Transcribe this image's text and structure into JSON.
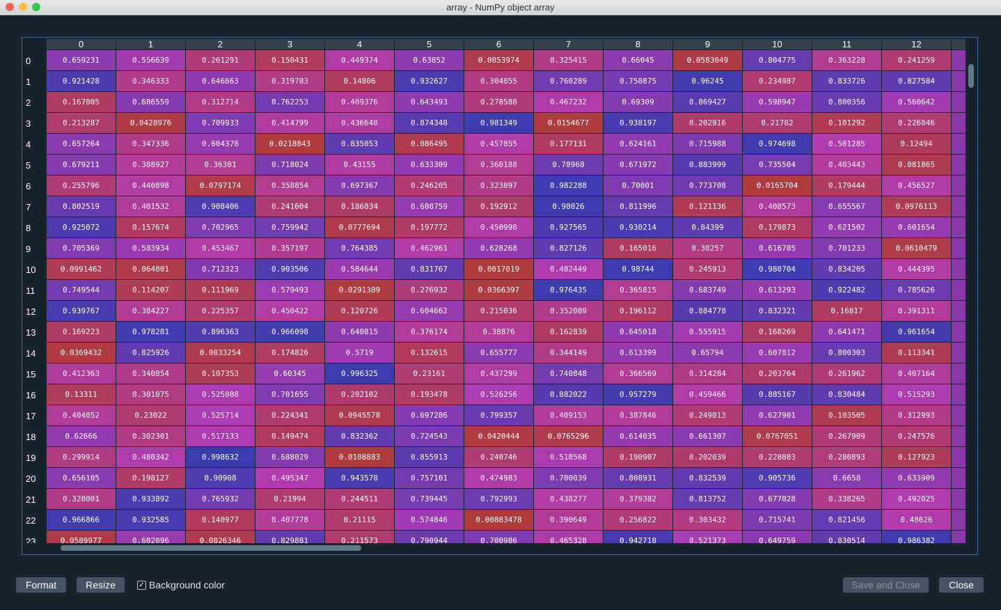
{
  "window": {
    "title": "array - NumPy object array"
  },
  "table": {
    "columns": [
      "0",
      "1",
      "2",
      "3",
      "4",
      "5",
      "6",
      "7",
      "8",
      "9",
      "10",
      "11",
      "12"
    ],
    "row_labels": [
      "0",
      "1",
      "2",
      "3",
      "4",
      "5",
      "6",
      "7",
      "8",
      "9",
      "10",
      "11",
      "12",
      "13",
      "14",
      "15",
      "16",
      "17",
      "18",
      "19",
      "20",
      "21",
      "22",
      "23"
    ],
    "rows": [
      [
        "0.659231",
        "0.556639",
        "0.261291",
        "0.150431",
        "0.449374",
        "0.63852",
        "0.0853974",
        "0.325415",
        "0.66045",
        "0.0583049",
        "0.804775",
        "0.363228",
        "0.241259"
      ],
      [
        "0.921428",
        "0.346333",
        "0.646663",
        "0.319783",
        "0.14806",
        "0.932627",
        "0.304055",
        "0.760289",
        "0.750875",
        "0.96245",
        "0.234987",
        "0.833726",
        "0.827584"
      ],
      [
        "0.167805",
        "0.686559",
        "0.312714",
        "0.762253",
        "0.409376",
        "0.643493",
        "0.278588",
        "0.467232",
        "0.69309",
        "0.869427",
        "0.598947",
        "0.800356",
        "0.560642"
      ],
      [
        "0.213287",
        "0.0428976",
        "0.709933",
        "0.414799",
        "0.436648",
        "0.874348",
        "0.981349",
        "0.0154677",
        "0.938197",
        "0.202916",
        "0.21782",
        "0.101292",
        "0.226046"
      ],
      [
        "0.657264",
        "0.347336",
        "0.604378",
        "0.0218843",
        "0.835053",
        "0.086495",
        "0.457855",
        "0.177131",
        "0.624161",
        "0.715988",
        "0.974698",
        "0.501285",
        "0.12494"
      ],
      [
        "0.679211",
        "0.388927",
        "0.36301",
        "0.718024",
        "0.43155",
        "0.633309",
        "0.360188",
        "0.78968",
        "0.671972",
        "0.883999",
        "0.735504",
        "0.403443",
        "0.081865"
      ],
      [
        "0.255796",
        "0.440898",
        "0.0797174",
        "0.358854",
        "0.697367",
        "0.246205",
        "0.323897",
        "0.982288",
        "0.70001",
        "0.773708",
        "0.0165704",
        "0.179444",
        "0.456527"
      ],
      [
        "0.802519",
        "0.401532",
        "0.908406",
        "0.241604",
        "0.186034",
        "0.608759",
        "0.192912",
        "0.98026",
        "0.811996",
        "0.121136",
        "0.408573",
        "0.655567",
        "0.0976113"
      ],
      [
        "0.925072",
        "0.157674",
        "0.702965",
        "0.759942",
        "0.0777694",
        "0.197772",
        "0.450998",
        "0.927565",
        "0.930214",
        "0.84399",
        "0.179873",
        "0.621502",
        "0.601654"
      ],
      [
        "0.705369",
        "0.583934",
        "0.453467",
        "0.357197",
        "0.764385",
        "0.462961",
        "0.628268",
        "0.827126",
        "0.165016",
        "0.30257",
        "0.616705",
        "0.701233",
        "0.0610479"
      ],
      [
        "0.0991462",
        "0.064801",
        "0.712323",
        "0.903506",
        "0.584644",
        "0.831767",
        "0.0017019",
        "0.482449",
        "0.98744",
        "0.245913",
        "0.980704",
        "0.834205",
        "0.444395"
      ],
      [
        "0.749544",
        "0.114207",
        "0.111969",
        "0.579493",
        "0.0291309",
        "0.276932",
        "0.0366397",
        "0.976435",
        "0.365815",
        "0.683749",
        "0.613293",
        "0.922482",
        "0.785626"
      ],
      [
        "0.939767",
        "0.384227",
        "0.225357",
        "0.450422",
        "0.120726",
        "0.604662",
        "0.215036",
        "0.352089",
        "0.196112",
        "0.884778",
        "0.832321",
        "0.16817",
        "0.391311"
      ],
      [
        "0.169223",
        "0.978281",
        "0.896363",
        "0.966098",
        "0.640815",
        "0.376174",
        "0.38876",
        "0.162839",
        "0.645018",
        "0.555915",
        "0.168269",
        "0.641471",
        "0.961654"
      ],
      [
        "0.0369432",
        "0.825926",
        "0.0833254",
        "0.174826",
        "0.5719",
        "0.132615",
        "0.655777",
        "0.344149",
        "0.613399",
        "0.65794",
        "0.607812",
        "0.800303",
        "0.113341"
      ],
      [
        "0.412363",
        "0.340854",
        "0.107353",
        "0.60345",
        "0.996325",
        "0.23161",
        "0.437299",
        "0.740848",
        "0.366569",
        "0.314284",
        "0.203764",
        "0.261962",
        "0.407164"
      ],
      [
        "0.13311",
        "0.301075",
        "0.525088",
        "0.701655",
        "0.202102",
        "0.193478",
        "0.526256",
        "0.882022",
        "0.957279",
        "0.459466",
        "0.885167",
        "0.830484",
        "0.515293"
      ],
      [
        "0.404052",
        "0.23022",
        "0.525714",
        "0.224341",
        "0.0945578",
        "0.697286",
        "0.799357",
        "0.409153",
        "0.387846",
        "0.249013",
        "0.627901",
        "0.103505",
        "0.312993"
      ],
      [
        "0.62666",
        "0.302301",
        "0.517133",
        "0.149474",
        "0.832362",
        "0.724543",
        "0.0420444",
        "0.0765296",
        "0.614035",
        "0.661307",
        "0.0767051",
        "0.267909",
        "0.247576"
      ],
      [
        "0.299914",
        "0.480342",
        "0.998632",
        "0.688029",
        "0.0108883",
        "0.855913",
        "0.240746",
        "0.510568",
        "0.190907",
        "0.202039",
        "0.220803",
        "0.280893",
        "0.127923"
      ],
      [
        "0.656105",
        "0.198127",
        "0.90908",
        "0.495347",
        "0.943578",
        "0.757101",
        "0.474983",
        "0.700039",
        "0.808931",
        "0.832539",
        "0.905736",
        "0.6658",
        "0.633909"
      ],
      [
        "0.328001",
        "0.933892",
        "0.765932",
        "0.21994",
        "0.244511",
        "0.739445",
        "0.792993",
        "0.438277",
        "0.379382",
        "0.813752",
        "0.677028",
        "0.338265",
        "0.492025"
      ],
      [
        "0.966866",
        "0.932585",
        "0.140977",
        "0.407778",
        "0.21115",
        "0.574846",
        "0.00883478",
        "0.390649",
        "0.256822",
        "0.303432",
        "0.715741",
        "0.821456",
        "0.48626"
      ],
      [
        "0.0589977",
        "0.602096",
        "0.0826346",
        "0.829881",
        "0.211573",
        "0.790944",
        "0.700986",
        "0.465328",
        "0.942718",
        "0.521373",
        "0.649759",
        "0.830514",
        "0.986382"
      ]
    ]
  },
  "buttons": {
    "format": "Format",
    "resize": "Resize",
    "background_color": "Background color",
    "save_and_close": "Save and Close",
    "close": "Close"
  }
}
